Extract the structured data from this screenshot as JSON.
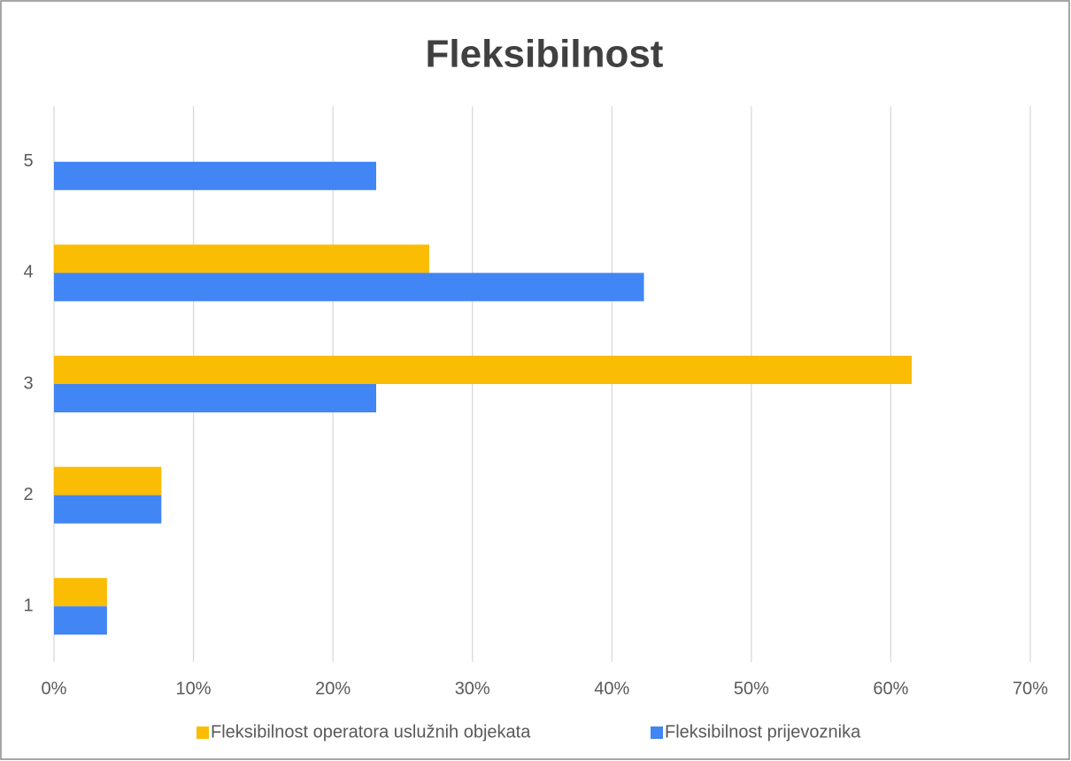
{
  "chart_data": {
    "type": "barh",
    "title": "Fleksibilnost",
    "categories": [
      "1",
      "2",
      "3",
      "4",
      "5"
    ],
    "series": [
      {
        "name": "Fleksibilnost operatora uslužnih objekata",
        "color": "#fbbc04",
        "values": [
          3.8,
          7.7,
          61.5,
          26.9,
          0
        ]
      },
      {
        "name": "Fleksibilnost prijevoznika",
        "color": "#4285f4",
        "values": [
          3.8,
          7.7,
          23.1,
          42.3,
          23.1
        ]
      }
    ],
    "xlim": [
      0,
      70
    ],
    "xticks": [
      {
        "value": 0,
        "label": "0%"
      },
      {
        "value": 10,
        "label": "10%"
      },
      {
        "value": 20,
        "label": "20%"
      },
      {
        "value": 30,
        "label": "30%"
      },
      {
        "value": 40,
        "label": "40%"
      },
      {
        "value": 50,
        "label": "50%"
      },
      {
        "value": 60,
        "label": "60%"
      },
      {
        "value": 70,
        "label": "70%"
      }
    ],
    "grid": true,
    "legend": "bottom"
  }
}
